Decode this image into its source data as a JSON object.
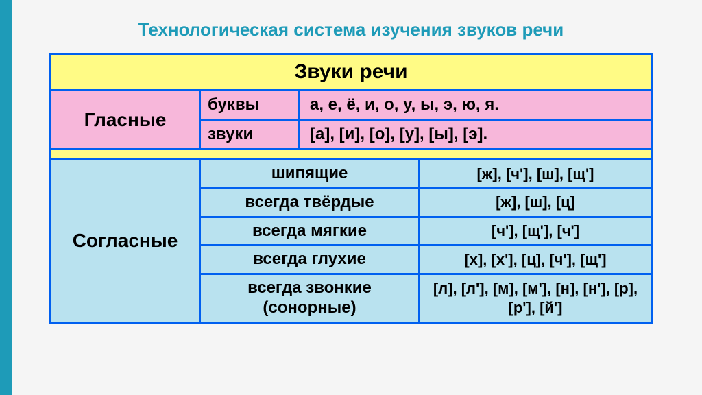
{
  "title": "Технологическая система изучения звуков речи",
  "header": "Звуки речи",
  "vowels": {
    "category": "Гласные",
    "rows": [
      {
        "label": "буквы",
        "value": "а, е, ё, и, о, у, ы, э, ю, я."
      },
      {
        "label": "звуки",
        "value": "[а], [и], [о], [у], [ы], [э]."
      }
    ]
  },
  "consonants": {
    "category": "Согласные",
    "rows": [
      {
        "label": "шипящие",
        "value": "[ж], [ч'], [ш], [щ']"
      },
      {
        "label": "всегда твёрдые",
        "value": "[ж], [ш], [ц]"
      },
      {
        "label": "всегда мягкие",
        "value": "[ч'], [щ'], [ч']"
      },
      {
        "label": "всегда глухие",
        "value": "[х], [х'], [ц], [ч'], [щ']"
      },
      {
        "label": "всегда звонкие (сонорные)",
        "value": "[л], [л'], [м], [м'], [н], [н'], [р], [р'], [й']"
      }
    ]
  },
  "colors": {
    "accent": "#1e9bb8",
    "border": "#0060f0",
    "yellow": "#fffb85",
    "pink": "#f7b7da",
    "blue": "#b9e2ef"
  }
}
